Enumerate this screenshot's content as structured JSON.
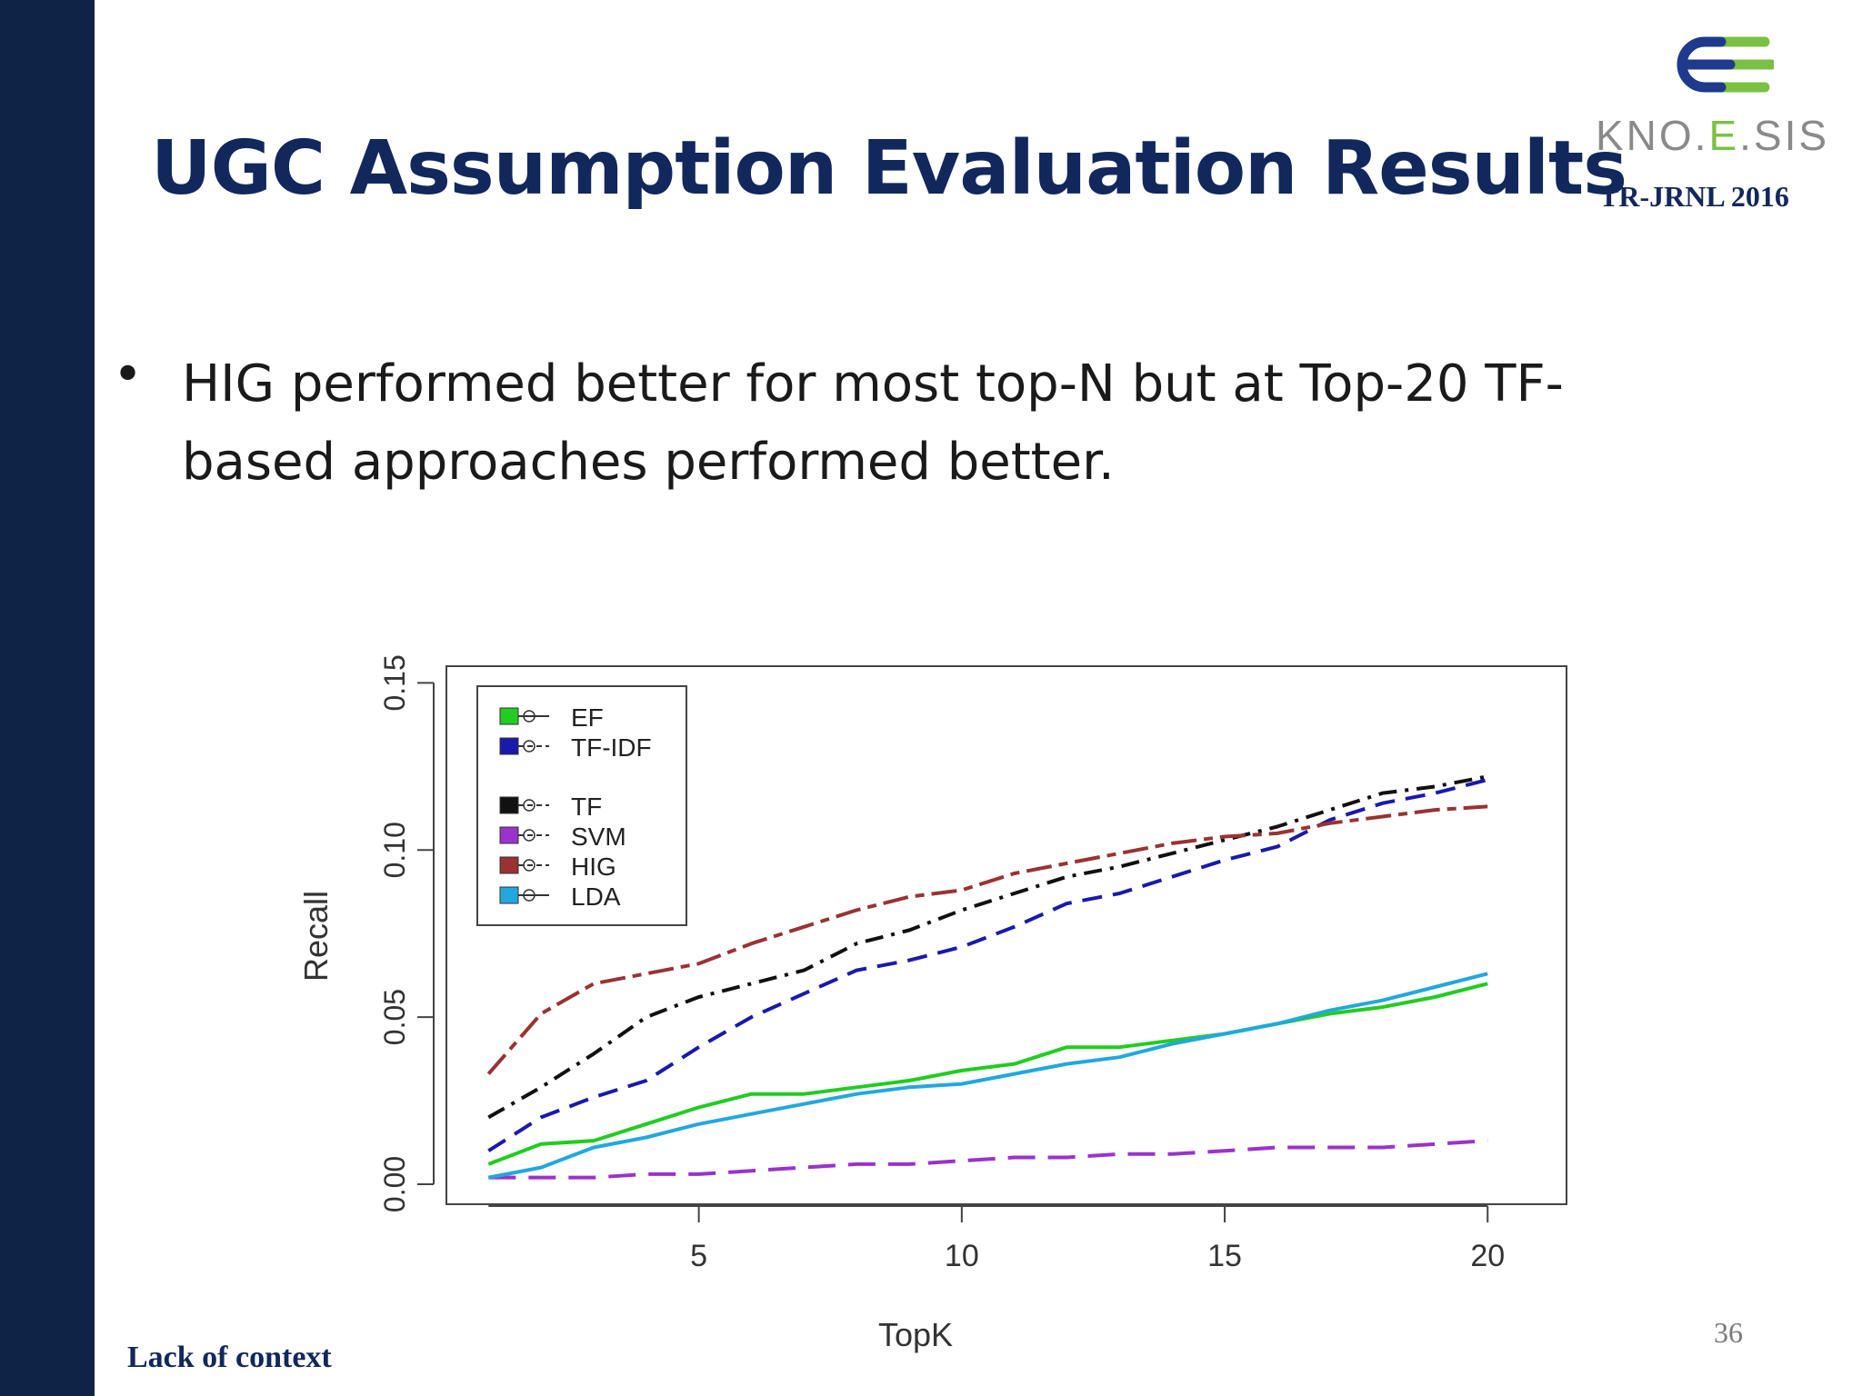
{
  "slide": {
    "title": "UGC Assumption Evaluation Results",
    "bullet": "HIG performed better for most top-N but at Top-20 TF-based approaches performed better.",
    "footer": "Lack of context",
    "page_number": "36"
  },
  "logo": {
    "name_prefix": "KNO.",
    "name_e": "E",
    "name_suffix": ".SIS",
    "subtitle": "TR-JRNL 2016",
    "colors": {
      "blue": "#1f3a8c",
      "green": "#7ac143",
      "gray": "#8a8a8a"
    }
  },
  "colors": {
    "bar": "#0f2346",
    "title": "#12275c"
  },
  "chart_data": {
    "type": "line",
    "xlabel": "TopK",
    "ylabel": "Recall",
    "xlim": [
      0.2,
      21.5
    ],
    "ylim": [
      -0.006,
      0.155
    ],
    "xticks": [
      5,
      10,
      15,
      20
    ],
    "yticks": [
      0.0,
      0.05,
      0.1,
      0.15
    ],
    "ytick_labels": [
      "0.00",
      "0.05",
      "0.10",
      "0.15"
    ],
    "grid": false,
    "legend_position": "top-left",
    "x": [
      1,
      2,
      3,
      4,
      5,
      6,
      7,
      8,
      9,
      10,
      11,
      12,
      13,
      14,
      15,
      16,
      17,
      18,
      19,
      20
    ],
    "series": [
      {
        "name": "EF",
        "color": "#22cc22",
        "dash": "solid",
        "marker": "circle",
        "values": [
          0.006,
          0.012,
          0.013,
          0.018,
          0.023,
          0.027,
          0.027,
          0.029,
          0.031,
          0.034,
          0.036,
          0.041,
          0.041,
          0.043,
          0.045,
          0.048,
          0.051,
          0.053,
          0.056,
          0.06
        ]
      },
      {
        "name": "TF-IDF",
        "color": "#1a1aaa",
        "dash": "dashed",
        "marker": "triangle",
        "values": [
          0.01,
          0.02,
          0.026,
          0.031,
          0.041,
          0.05,
          0.057,
          0.064,
          0.067,
          0.071,
          0.077,
          0.084,
          0.087,
          0.092,
          0.097,
          0.101,
          0.109,
          0.114,
          0.117,
          0.121
        ]
      },
      {
        "name": "TF",
        "color": "#111111",
        "dash": "dashdot",
        "marker": "x",
        "values": [
          0.02,
          0.029,
          0.039,
          0.05,
          0.056,
          0.06,
          0.064,
          0.072,
          0.076,
          0.082,
          0.087,
          0.092,
          0.095,
          0.099,
          0.103,
          0.107,
          0.112,
          0.117,
          0.119,
          0.122
        ]
      },
      {
        "name": "SVM",
        "color": "#9933cc",
        "dash": "longdash",
        "marker": "diamond",
        "values": [
          0.002,
          0.002,
          0.002,
          0.003,
          0.003,
          0.004,
          0.005,
          0.006,
          0.006,
          0.007,
          0.008,
          0.008,
          0.009,
          0.009,
          0.01,
          0.011,
          0.011,
          0.011,
          0.012,
          0.013
        ]
      },
      {
        "name": "HIG",
        "color": "#993333",
        "dash": "twodash",
        "marker": "triangle-down",
        "values": [
          0.033,
          0.051,
          0.06,
          0.063,
          0.066,
          0.072,
          0.077,
          0.082,
          0.086,
          0.088,
          0.093,
          0.096,
          0.099,
          0.102,
          0.104,
          0.105,
          0.108,
          0.11,
          0.112,
          0.113
        ]
      },
      {
        "name": "LDA",
        "color": "#22a8dd",
        "dash": "solid",
        "marker": "circle-x",
        "values": [
          0.002,
          0.005,
          0.011,
          0.014,
          0.018,
          0.021,
          0.024,
          0.027,
          0.029,
          0.03,
          0.033,
          0.036,
          0.038,
          0.042,
          0.045,
          0.048,
          0.052,
          0.055,
          0.059,
          0.063
        ]
      }
    ],
    "legend_groups": [
      [
        "EF",
        "TF-IDF"
      ],
      [
        "TF",
        "SVM",
        "HIG",
        "LDA"
      ]
    ]
  }
}
